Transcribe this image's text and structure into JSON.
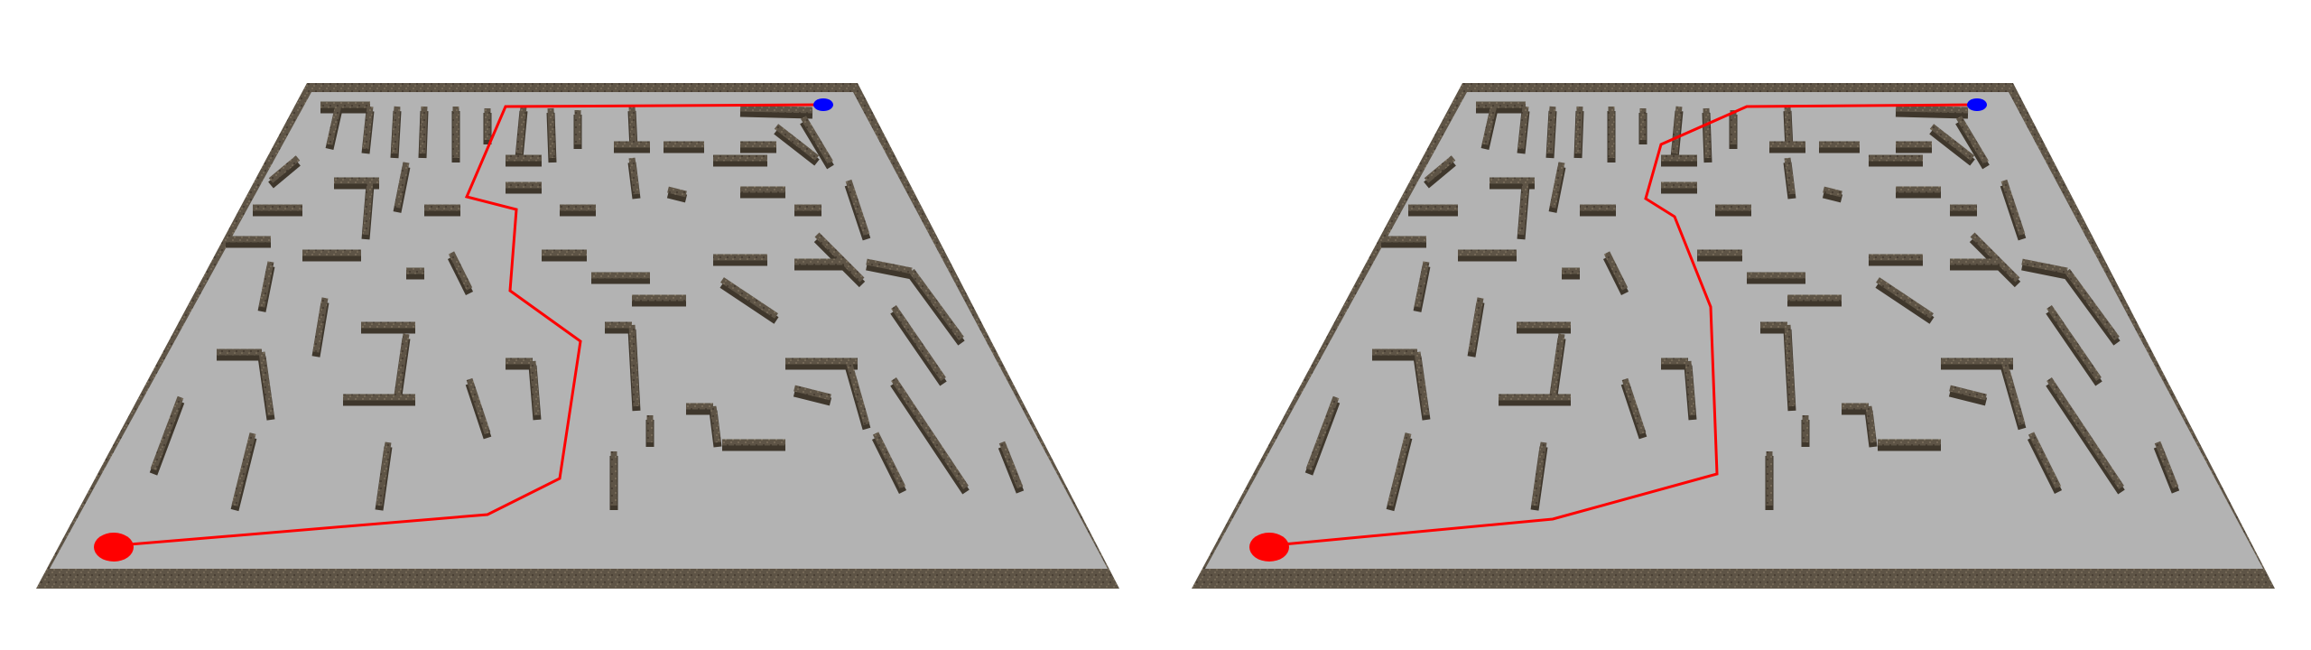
{
  "colors": {
    "background": "#ffffff",
    "floor": "#b3b3b3",
    "wall_top": "#5e5446",
    "wall_face": "#3f372c",
    "border_dark": "#3a332a",
    "path_line": "#ff0000",
    "start_marker": "#ff0000",
    "goal_marker": "#0000ff"
  },
  "panels": [
    {
      "name": "maze-panel-left",
      "solution_label": "path-a"
    },
    {
      "name": "maze-panel-right",
      "solution_label": "path-b"
    }
  ],
  "markers": {
    "start": {
      "icon": "red-start-disc-icon"
    },
    "goal": {
      "icon": "blue-goal-disc-icon"
    }
  }
}
